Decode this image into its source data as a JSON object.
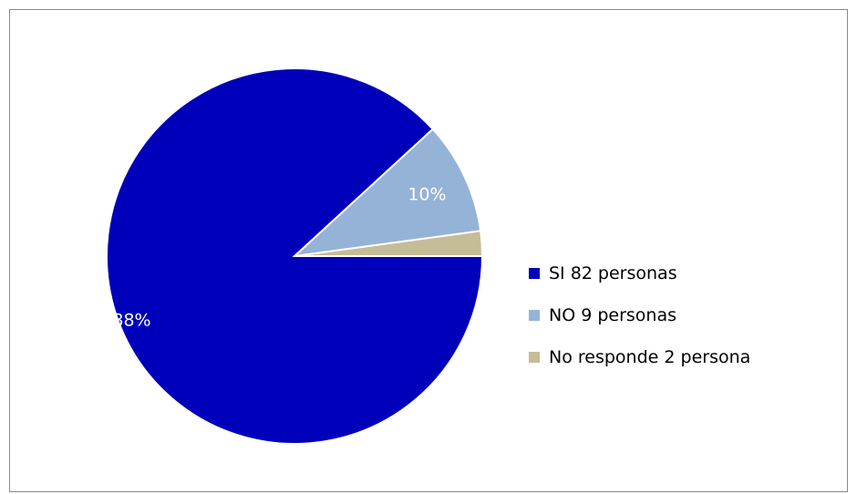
{
  "chart_data": {
    "type": "pie",
    "title": "",
    "categories": [
      "SI 82 personas",
      "NO 9 personas",
      "No responde 2 persona"
    ],
    "values": [
      82,
      9,
      2
    ],
    "percent_labels": [
      "88%",
      "10%",
      ""
    ],
    "colors": [
      "#0000BB",
      "#95B3D7",
      "#C4BD97"
    ],
    "legend_position": "right",
    "start": "3 o'clock, counter-clockwise"
  }
}
